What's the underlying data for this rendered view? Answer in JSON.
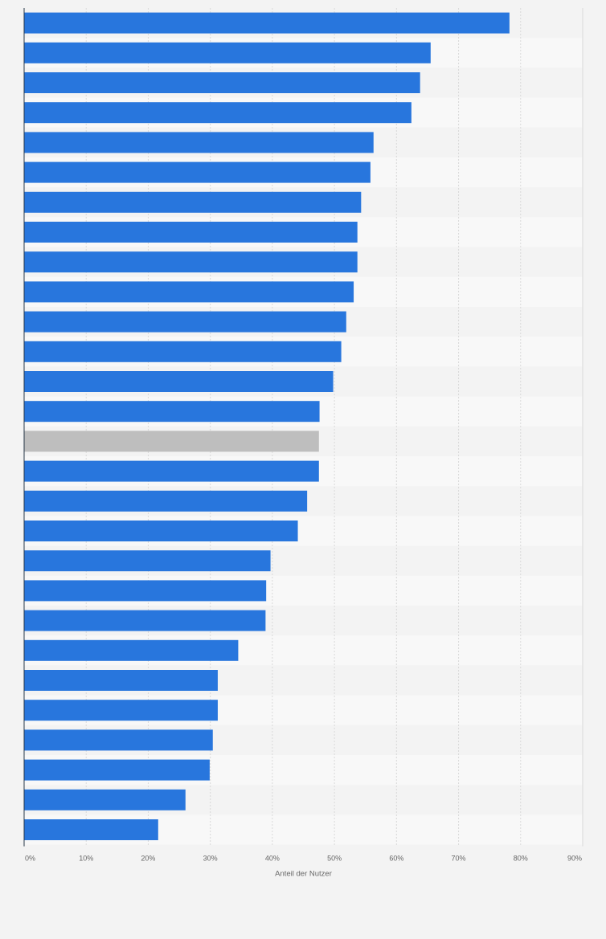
{
  "colors": {
    "bar": "#2876dd",
    "highlight": "#bebebe",
    "band_even": "#f3f3f3",
    "band_odd": "#f8f8f8",
    "grid": "#d9d9d9",
    "axis": "#2a3a4a",
    "page_background": "#f3f3f3"
  },
  "chart_data": {
    "type": "bar",
    "orientation": "horizontal",
    "xlabel": "Anteil der Nutzer",
    "ylabel": "",
    "xlim": [
      0,
      90
    ],
    "x_ticks": [
      "0%",
      "10%",
      "20%",
      "30%",
      "40%",
      "50%",
      "60%",
      "70%",
      "80%",
      "90%"
    ],
    "grid": true,
    "values": [
      78.2,
      65.5,
      63.8,
      62.4,
      56.3,
      55.8,
      54.3,
      53.7,
      53.7,
      53.1,
      51.9,
      51.1,
      49.8,
      47.6,
      47.5,
      47.5,
      45.6,
      44.1,
      39.7,
      39.0,
      38.9,
      34.5,
      31.2,
      31.2,
      30.4,
      29.9,
      26.0,
      21.6
    ],
    "highlight_index": 14
  }
}
